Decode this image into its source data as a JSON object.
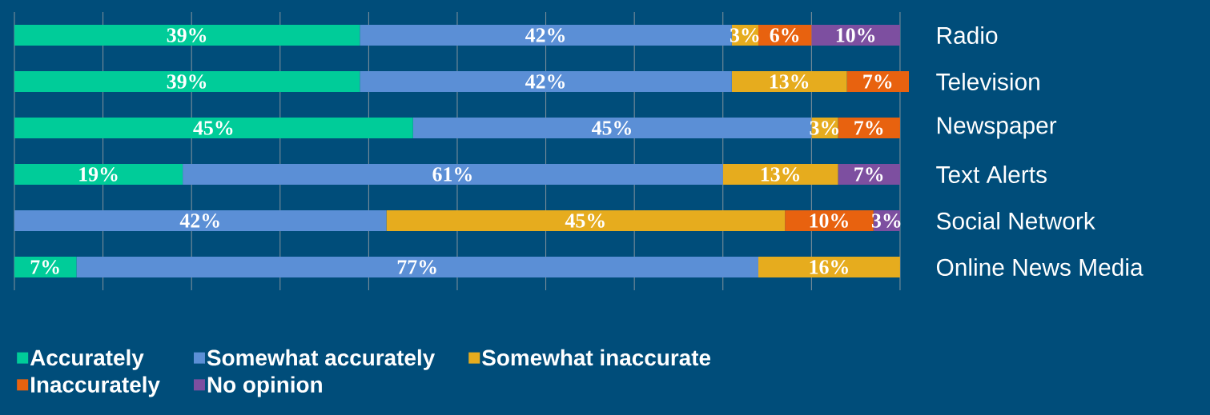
{
  "chart_data": {
    "type": "bar",
    "orientation": "horizontal",
    "stacked": true,
    "categories": [
      "Radio",
      "Television",
      "Newspaper",
      "Text Alerts",
      "Social Network",
      "Online News Media"
    ],
    "xlim": [
      0,
      101
    ],
    "xticks": [
      {
        "value": 0,
        "label": null
      },
      {
        "value": 10,
        "label": null
      },
      {
        "value": 20,
        "label": null
      },
      {
        "value": 30,
        "label": null
      },
      {
        "value": 40,
        "label": null
      },
      {
        "value": 50,
        "label": null
      },
      {
        "value": 60,
        "label": null
      },
      {
        "value": 70,
        "label": null
      },
      {
        "value": 80,
        "label": null
      },
      {
        "value": 90,
        "label": null
      },
      {
        "value": 100,
        "label": null
      }
    ],
    "grid": "x",
    "legend": "bottom",
    "series": [
      {
        "name": "Accurately",
        "color": "#00cc99",
        "values": [
          39,
          39,
          45,
          19,
          null,
          7
        ],
        "value_labels": [
          "39%",
          "39%",
          "45%",
          "19%",
          null,
          "7%"
        ]
      },
      {
        "name": "Somewhat accurately",
        "color": "#5b8fd6",
        "values": [
          42,
          42,
          45,
          61,
          42,
          77
        ],
        "value_labels": [
          "42%",
          "42%",
          "45%",
          "61%",
          "42%",
          "77%"
        ]
      },
      {
        "name": "Somewhat inaccurate",
        "color": "#e6ac1e",
        "values": [
          3,
          13,
          3,
          13,
          45,
          16
        ],
        "value_labels": [
          "3%",
          "13%",
          "3%",
          "13%",
          "45%",
          "16%"
        ]
      },
      {
        "name": "Inaccurately",
        "color": "#e8620f",
        "values": [
          6,
          7,
          7,
          null,
          10,
          null
        ],
        "value_labels": [
          "6%",
          "7%",
          "7%",
          null,
          "10%",
          null
        ]
      },
      {
        "name": "No opinion",
        "color": "#7d4fa0",
        "values": [
          10,
          null,
          null,
          7,
          3,
          null
        ],
        "value_labels": [
          "10%",
          null,
          null,
          "7%",
          "3%",
          null
        ]
      }
    ]
  }
}
